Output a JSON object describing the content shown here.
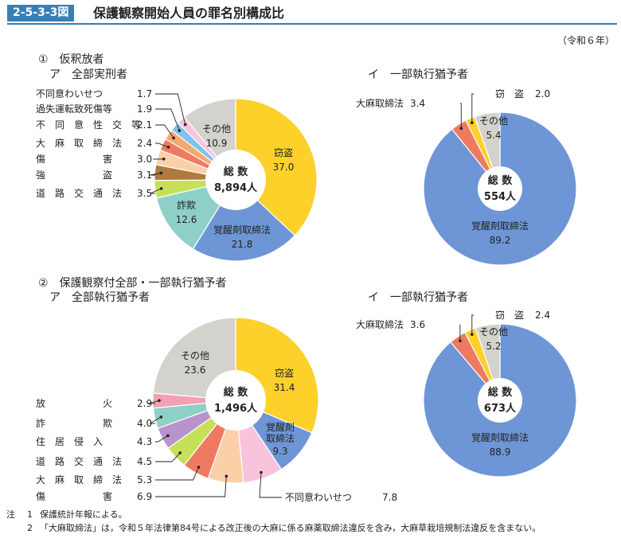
{
  "figure": {
    "number": "2-5-3-3図",
    "title": "保護観察開始人員の罪名別構成比",
    "period": "（令和６年）"
  },
  "sections": {
    "s1": "①　仮釈放者",
    "s1a": "ア　全部実刑者",
    "s1b": "イ　一部執行猶予者",
    "s2": "②　保護観察付全部・一部執行猶予者",
    "s2a": "ア　全部執行猶予者",
    "s2b": "イ　一部執行猶予者"
  },
  "center_label": "総 数",
  "chart_data": [
    {
      "type": "pie",
      "id": "p1a",
      "total": "8,894人",
      "slices": [
        {
          "name": "窃盗",
          "value": 37.0,
          "color": "#fdd02a",
          "label": "窃盗",
          "value_text": "37.0"
        },
        {
          "name": "覚醒剤取締法",
          "value": 21.8,
          "color": "#6e96d6",
          "label": "覚醒剤取締法",
          "value_text": "21.8"
        },
        {
          "name": "詐欺",
          "value": 12.6,
          "color": "#8ed0c8",
          "label": "詐欺",
          "value_text": "12.6"
        },
        {
          "name": "道路交通法",
          "value": 3.5,
          "color": "#c6e05a",
          "label": "道　路　交　通　法",
          "value_text": "3.5"
        },
        {
          "name": "強盗",
          "value": 3.1,
          "color": "#b07a3e",
          "label": "強　　　　　　盗",
          "value_text": "3.1"
        },
        {
          "name": "傷害",
          "value": 3.0,
          "color": "#fbd0a8",
          "label": "傷　　　　　　害",
          "value_text": "3.0"
        },
        {
          "name": "大麻取締法",
          "value": 2.4,
          "color": "#ef7a62",
          "label": "大　麻　取　締　法",
          "value_text": "2.4"
        },
        {
          "name": "不同意性交等",
          "value": 2.1,
          "color": "#f7a86c",
          "label": "不　同　意　性　交　等",
          "value_text": "2.1"
        },
        {
          "name": "過失運転致死傷等",
          "value": 1.9,
          "color": "#7fc4ec",
          "label": "過失運転致死傷等",
          "value_text": "1.9"
        },
        {
          "name": "不同意わいせつ",
          "value": 1.7,
          "color": "#f8c4dc",
          "label": "不同意わいせつ",
          "value_text": "1.7"
        },
        {
          "name": "その他",
          "value": 10.9,
          "color": "#d4d2cc",
          "label": "その他",
          "value_text": "10.9"
        }
      ]
    },
    {
      "type": "pie",
      "id": "p1b",
      "total": "554人",
      "slices": [
        {
          "name": "覚醒剤取締法",
          "value": 89.2,
          "color": "#6e96d6",
          "label": "覚醒剤取締法",
          "value_text": "89.2"
        },
        {
          "name": "大麻取締法",
          "value": 3.4,
          "color": "#ef7a62",
          "label": "大麻取締法",
          "value_text": "3.4"
        },
        {
          "name": "窃盗",
          "value": 2.0,
          "color": "#fdd02a",
          "label": "窃　盗",
          "value_text": "2.0"
        },
        {
          "name": "その他",
          "value": 5.4,
          "color": "#d4d2cc",
          "label": "その他",
          "value_text": "5.4"
        }
      ]
    },
    {
      "type": "pie",
      "id": "p2a",
      "total": "1,496人",
      "slices": [
        {
          "name": "窃盗",
          "value": 31.4,
          "color": "#fdd02a",
          "label": "窃盗",
          "value_text": "31.4"
        },
        {
          "name": "覚醒剤取締法",
          "value": 9.3,
          "color": "#6e96d6",
          "label": "覚醒剤取締法",
          "value_text": "9.3"
        },
        {
          "name": "不同意わいせつ",
          "value": 7.8,
          "color": "#f8c4dc",
          "label": "不同意わいせつ",
          "value_text": "7.8"
        },
        {
          "name": "傷害",
          "value": 6.9,
          "color": "#fbd0a8",
          "label": "傷　　　　　　害",
          "value_text": "6.9"
        },
        {
          "name": "大麻取締法",
          "value": 5.3,
          "color": "#ef7a62",
          "label": "大　麻　取　締　法",
          "value_text": "5.3"
        },
        {
          "name": "道路交通法",
          "value": 4.5,
          "color": "#c6e05a",
          "label": "道　路　交　通　法",
          "value_text": "4.5"
        },
        {
          "name": "住居侵入",
          "value": 4.3,
          "color": "#b994cc",
          "label": "住　居　侵　入",
          "value_text": "4.3"
        },
        {
          "name": "詐欺",
          "value": 4.0,
          "color": "#8ed0c8",
          "label": "詐　　　　　　欺",
          "value_text": "4.0"
        },
        {
          "name": "放火",
          "value": 2.9,
          "color": "#f3a0b2",
          "label": "放　　　　　　火",
          "value_text": "2.9"
        },
        {
          "name": "その他",
          "value": 23.6,
          "color": "#d4d2cc",
          "label": "その他",
          "value_text": "23.6"
        }
      ]
    },
    {
      "type": "pie",
      "id": "p2b",
      "total": "673人",
      "slices": [
        {
          "name": "覚醒剤取締法",
          "value": 88.9,
          "color": "#6e96d6",
          "label": "覚醒剤取締法",
          "value_text": "88.9"
        },
        {
          "name": "大麻取締法",
          "value": 3.6,
          "color": "#ef7a62",
          "label": "大麻取締法",
          "value_text": "3.6"
        },
        {
          "name": "窃盗",
          "value": 2.4,
          "color": "#fdd02a",
          "label": "窃　盗",
          "value_text": "2.4"
        },
        {
          "name": "その他",
          "value": 5.2,
          "color": "#d4d2cc",
          "label": "その他",
          "value_text": "5.2"
        }
      ]
    }
  ],
  "notes": [
    {
      "key": "注",
      "num": "1",
      "text": "保護統計年報による。"
    },
    {
      "key": "",
      "num": "2",
      "text": "「大麻取締法」は，令和５年法律第84号による改正後の大麻に係る麻薬取締法違反を含み，大麻草栽培規制法違反を含まない。"
    }
  ]
}
